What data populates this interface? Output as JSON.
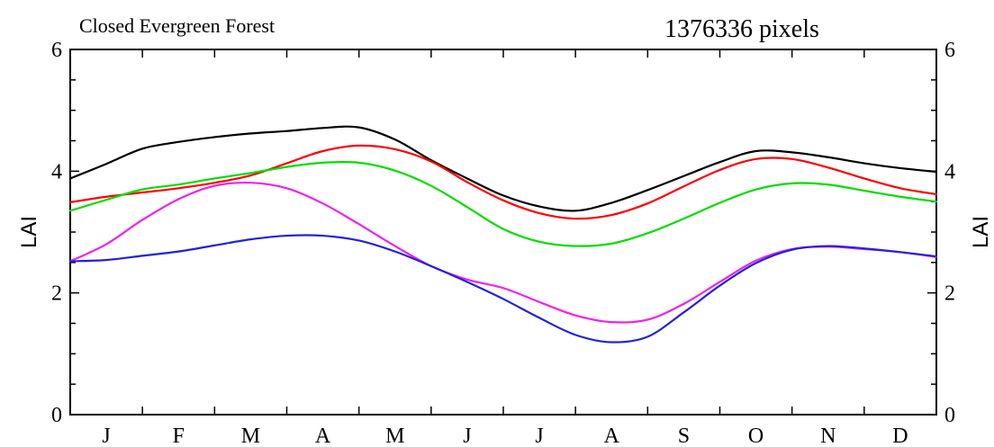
{
  "header": {
    "title": "Closed Evergreen Forest",
    "pixel_count": "1376336 pixels"
  },
  "chart_data": {
    "type": "line",
    "title": "Closed Evergreen Forest",
    "subtitle": "1376336 pixels",
    "xlabel": "",
    "ylabel": "LAI",
    "ylabel_right": "LAI",
    "ylim": [
      0,
      6
    ],
    "yticks": [
      0,
      2,
      4,
      6
    ],
    "y_tick_labels": [
      "0",
      "2",
      "4",
      "6"
    ],
    "categories": [
      "J",
      "F",
      "M",
      "A",
      "M",
      "J",
      "J",
      "A",
      "S",
      "O",
      "N",
      "D"
    ],
    "x": [
      0.0,
      0.5,
      1.0,
      1.5,
      2.0,
      2.5,
      3.0,
      3.5,
      4.0,
      4.5,
      5.0,
      5.5,
      6.0,
      6.5,
      7.0,
      7.5,
      8.0,
      8.5,
      9.0,
      9.5,
      10.0,
      10.5,
      11.0,
      11.5,
      12.0
    ],
    "grid": false,
    "legend": "none",
    "series": [
      {
        "color": "#000000",
        "values": [
          3.88,
          4.12,
          4.37,
          4.48,
          4.56,
          4.62,
          4.66,
          4.71,
          4.72,
          4.52,
          4.18,
          3.88,
          3.6,
          3.42,
          3.35,
          3.48,
          3.69,
          3.92,
          4.15,
          4.33,
          4.31,
          4.23,
          4.13,
          4.05,
          3.99
        ]
      },
      {
        "color": "#ff0000",
        "values": [
          3.49,
          3.58,
          3.65,
          3.72,
          3.81,
          3.93,
          4.13,
          4.33,
          4.42,
          4.36,
          4.16,
          3.82,
          3.52,
          3.31,
          3.22,
          3.28,
          3.47,
          3.75,
          4.02,
          4.2,
          4.2,
          4.06,
          3.88,
          3.72,
          3.62
        ]
      },
      {
        "color": "#00dd00",
        "values": [
          3.35,
          3.53,
          3.7,
          3.78,
          3.88,
          3.97,
          4.07,
          4.14,
          4.14,
          4.01,
          3.76,
          3.41,
          3.05,
          2.84,
          2.77,
          2.81,
          2.98,
          3.22,
          3.48,
          3.7,
          3.8,
          3.78,
          3.68,
          3.58,
          3.5
        ]
      },
      {
        "color": "#ee22ee",
        "values": [
          2.52,
          2.8,
          3.2,
          3.54,
          3.76,
          3.81,
          3.72,
          3.47,
          3.13,
          2.77,
          2.44,
          2.22,
          2.08,
          1.85,
          1.63,
          1.52,
          1.56,
          1.82,
          2.18,
          2.53,
          2.72,
          2.76,
          2.72,
          2.67,
          2.59
        ]
      },
      {
        "color": "#2222dd",
        "values": [
          2.52,
          2.54,
          2.61,
          2.68,
          2.78,
          2.88,
          2.94,
          2.94,
          2.86,
          2.68,
          2.44,
          2.18,
          1.9,
          1.59,
          1.31,
          1.19,
          1.28,
          1.68,
          2.12,
          2.49,
          2.71,
          2.77,
          2.73,
          2.67,
          2.6
        ]
      }
    ]
  }
}
